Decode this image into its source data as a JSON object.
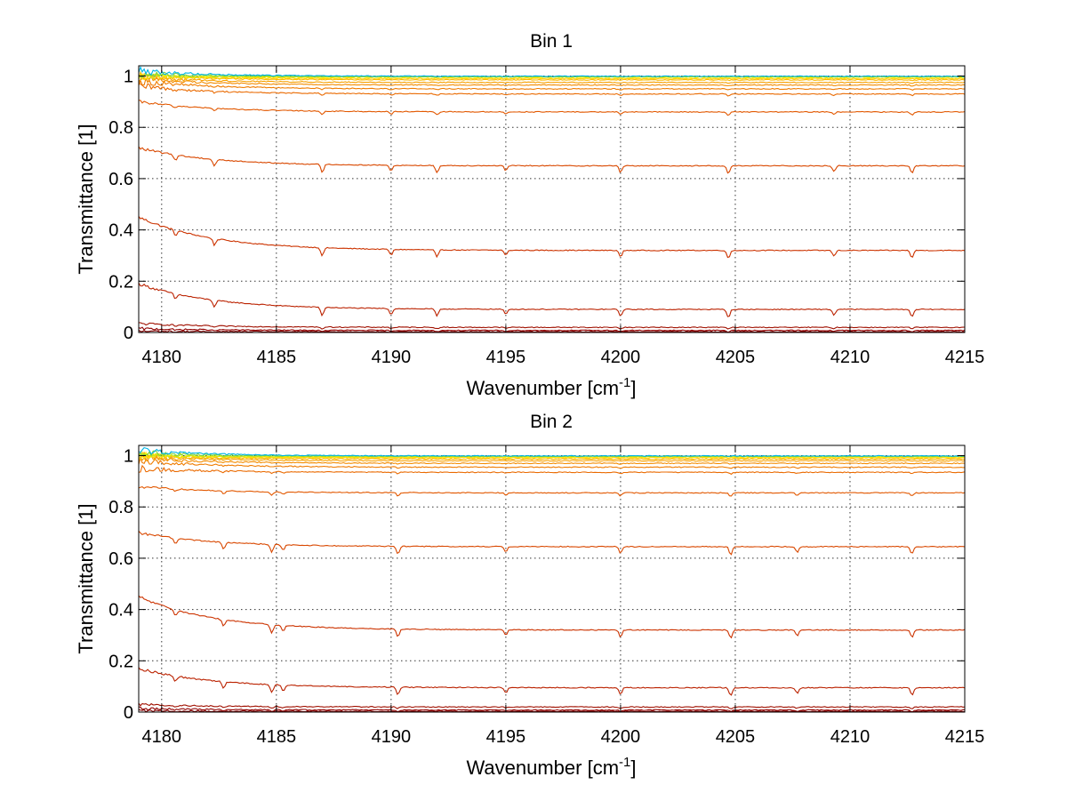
{
  "chart_data": [
    {
      "type": "line",
      "title": "Bin 1",
      "xlabel": "Wavenumber [cm",
      "xlabel_sup": "-1",
      "xlabel_end": "]",
      "ylabel": "Transmittance [1]",
      "xlim": [
        4179,
        4215
      ],
      "ylim": [
        0,
        1.04
      ],
      "grid": true,
      "x_ticks": [
        4180,
        4185,
        4190,
        4195,
        4200,
        4205,
        4210,
        4215
      ],
      "y_ticks": [
        0,
        0.2,
        0.4,
        0.6,
        0.8,
        1
      ],
      "x_tick_labels": [
        "4180",
        "4185",
        "4190",
        "4195",
        "4200",
        "4205",
        "4210",
        "4215"
      ],
      "y_tick_labels": [
        "0",
        "0.2",
        "0.4",
        "0.6",
        "0.8",
        "1"
      ],
      "absorption_lines": [
        4180.6,
        4182.3,
        4187.0,
        4190.0,
        4192.0,
        4195.0,
        4200.0,
        4204.7,
        4209.3,
        4212.7
      ],
      "series": [
        {
          "start": 0.45,
          "level": 0.32,
          "color": "#cc3300"
        },
        {
          "start": 0.19,
          "level": 0.09,
          "color": "#bb2200"
        },
        {
          "start": 0.035,
          "level": 0.02,
          "color": "#a01000"
        },
        {
          "start": 0.015,
          "level": 0.008,
          "color": "#900000"
        },
        {
          "start": 0.005,
          "level": 0.003,
          "color": "#800000"
        },
        {
          "start": 0.72,
          "level": 0.65,
          "color": "#d94800"
        },
        {
          "start": 0.9,
          "level": 0.86,
          "color": "#e25800"
        },
        {
          "start": 0.96,
          "level": 0.93,
          "color": "#ea6a00"
        },
        {
          "start": 0.98,
          "level": 0.95,
          "color": "#ef7c00"
        },
        {
          "start": 0.99,
          "level": 0.965,
          "color": "#f38c00"
        },
        {
          "start": 0.995,
          "level": 0.975,
          "color": "#f7a000"
        },
        {
          "start": 1.0,
          "level": 0.985,
          "color": "#fbb800"
        },
        {
          "start": 1.0,
          "level": 0.99,
          "color": "#ffd000"
        },
        {
          "start": 1.0,
          "level": 0.995,
          "color": "#ffee00"
        },
        {
          "start": 1.0,
          "level": 0.997,
          "color": "#c8e61e"
        },
        {
          "start": 1.01,
          "level": 0.998,
          "color": "#7cd23c"
        },
        {
          "start": 1.02,
          "level": 0.999,
          "color": "#00b4e6"
        }
      ]
    },
    {
      "type": "line",
      "title": "Bin 2",
      "xlabel": "Wavenumber [cm",
      "xlabel_sup": "-1",
      "xlabel_end": "]",
      "ylabel": "Transmittance [1]",
      "xlim": [
        4179,
        4215
      ],
      "ylim": [
        0,
        1.04
      ],
      "grid": true,
      "x_ticks": [
        4180,
        4185,
        4190,
        4195,
        4200,
        4205,
        4210,
        4215
      ],
      "y_ticks": [
        0,
        0.2,
        0.4,
        0.6,
        0.8,
        1
      ],
      "x_tick_labels": [
        "4180",
        "4185",
        "4190",
        "4195",
        "4200",
        "4205",
        "4210",
        "4215"
      ],
      "y_tick_labels": [
        "0",
        "0.2",
        "0.4",
        "0.6",
        "0.8",
        "1"
      ],
      "absorption_lines": [
        4180.6,
        4182.7,
        4184.8,
        4185.3,
        4190.3,
        4195.0,
        4200.0,
        4204.8,
        4207.7,
        4212.7
      ],
      "series": [
        {
          "start": 0.45,
          "level": 0.32,
          "color": "#cc3300"
        },
        {
          "start": 0.17,
          "level": 0.095,
          "color": "#bb2200"
        },
        {
          "start": 0.03,
          "level": 0.02,
          "color": "#a01000"
        },
        {
          "start": 0.015,
          "level": 0.008,
          "color": "#900000"
        },
        {
          "start": 0.005,
          "level": 0.003,
          "color": "#800000"
        },
        {
          "start": 0.7,
          "level": 0.645,
          "color": "#d94800"
        },
        {
          "start": 0.88,
          "level": 0.855,
          "color": "#e25800"
        },
        {
          "start": 0.95,
          "level": 0.935,
          "color": "#ea6a00"
        },
        {
          "start": 0.98,
          "level": 0.955,
          "color": "#ef7c00"
        },
        {
          "start": 0.99,
          "level": 0.97,
          "color": "#f38c00"
        },
        {
          "start": 0.995,
          "level": 0.98,
          "color": "#f7a000"
        },
        {
          "start": 1.0,
          "level": 0.987,
          "color": "#fbb800"
        },
        {
          "start": 1.0,
          "level": 0.992,
          "color": "#ffd000"
        },
        {
          "start": 1.0,
          "level": 0.995,
          "color": "#ffee00"
        },
        {
          "start": 1.0,
          "level": 0.997,
          "color": "#c8e61e"
        },
        {
          "start": 1.01,
          "level": 0.998,
          "color": "#7cd23c"
        },
        {
          "start": 1.02,
          "level": 0.999,
          "color": "#00b4e6"
        }
      ]
    }
  ]
}
